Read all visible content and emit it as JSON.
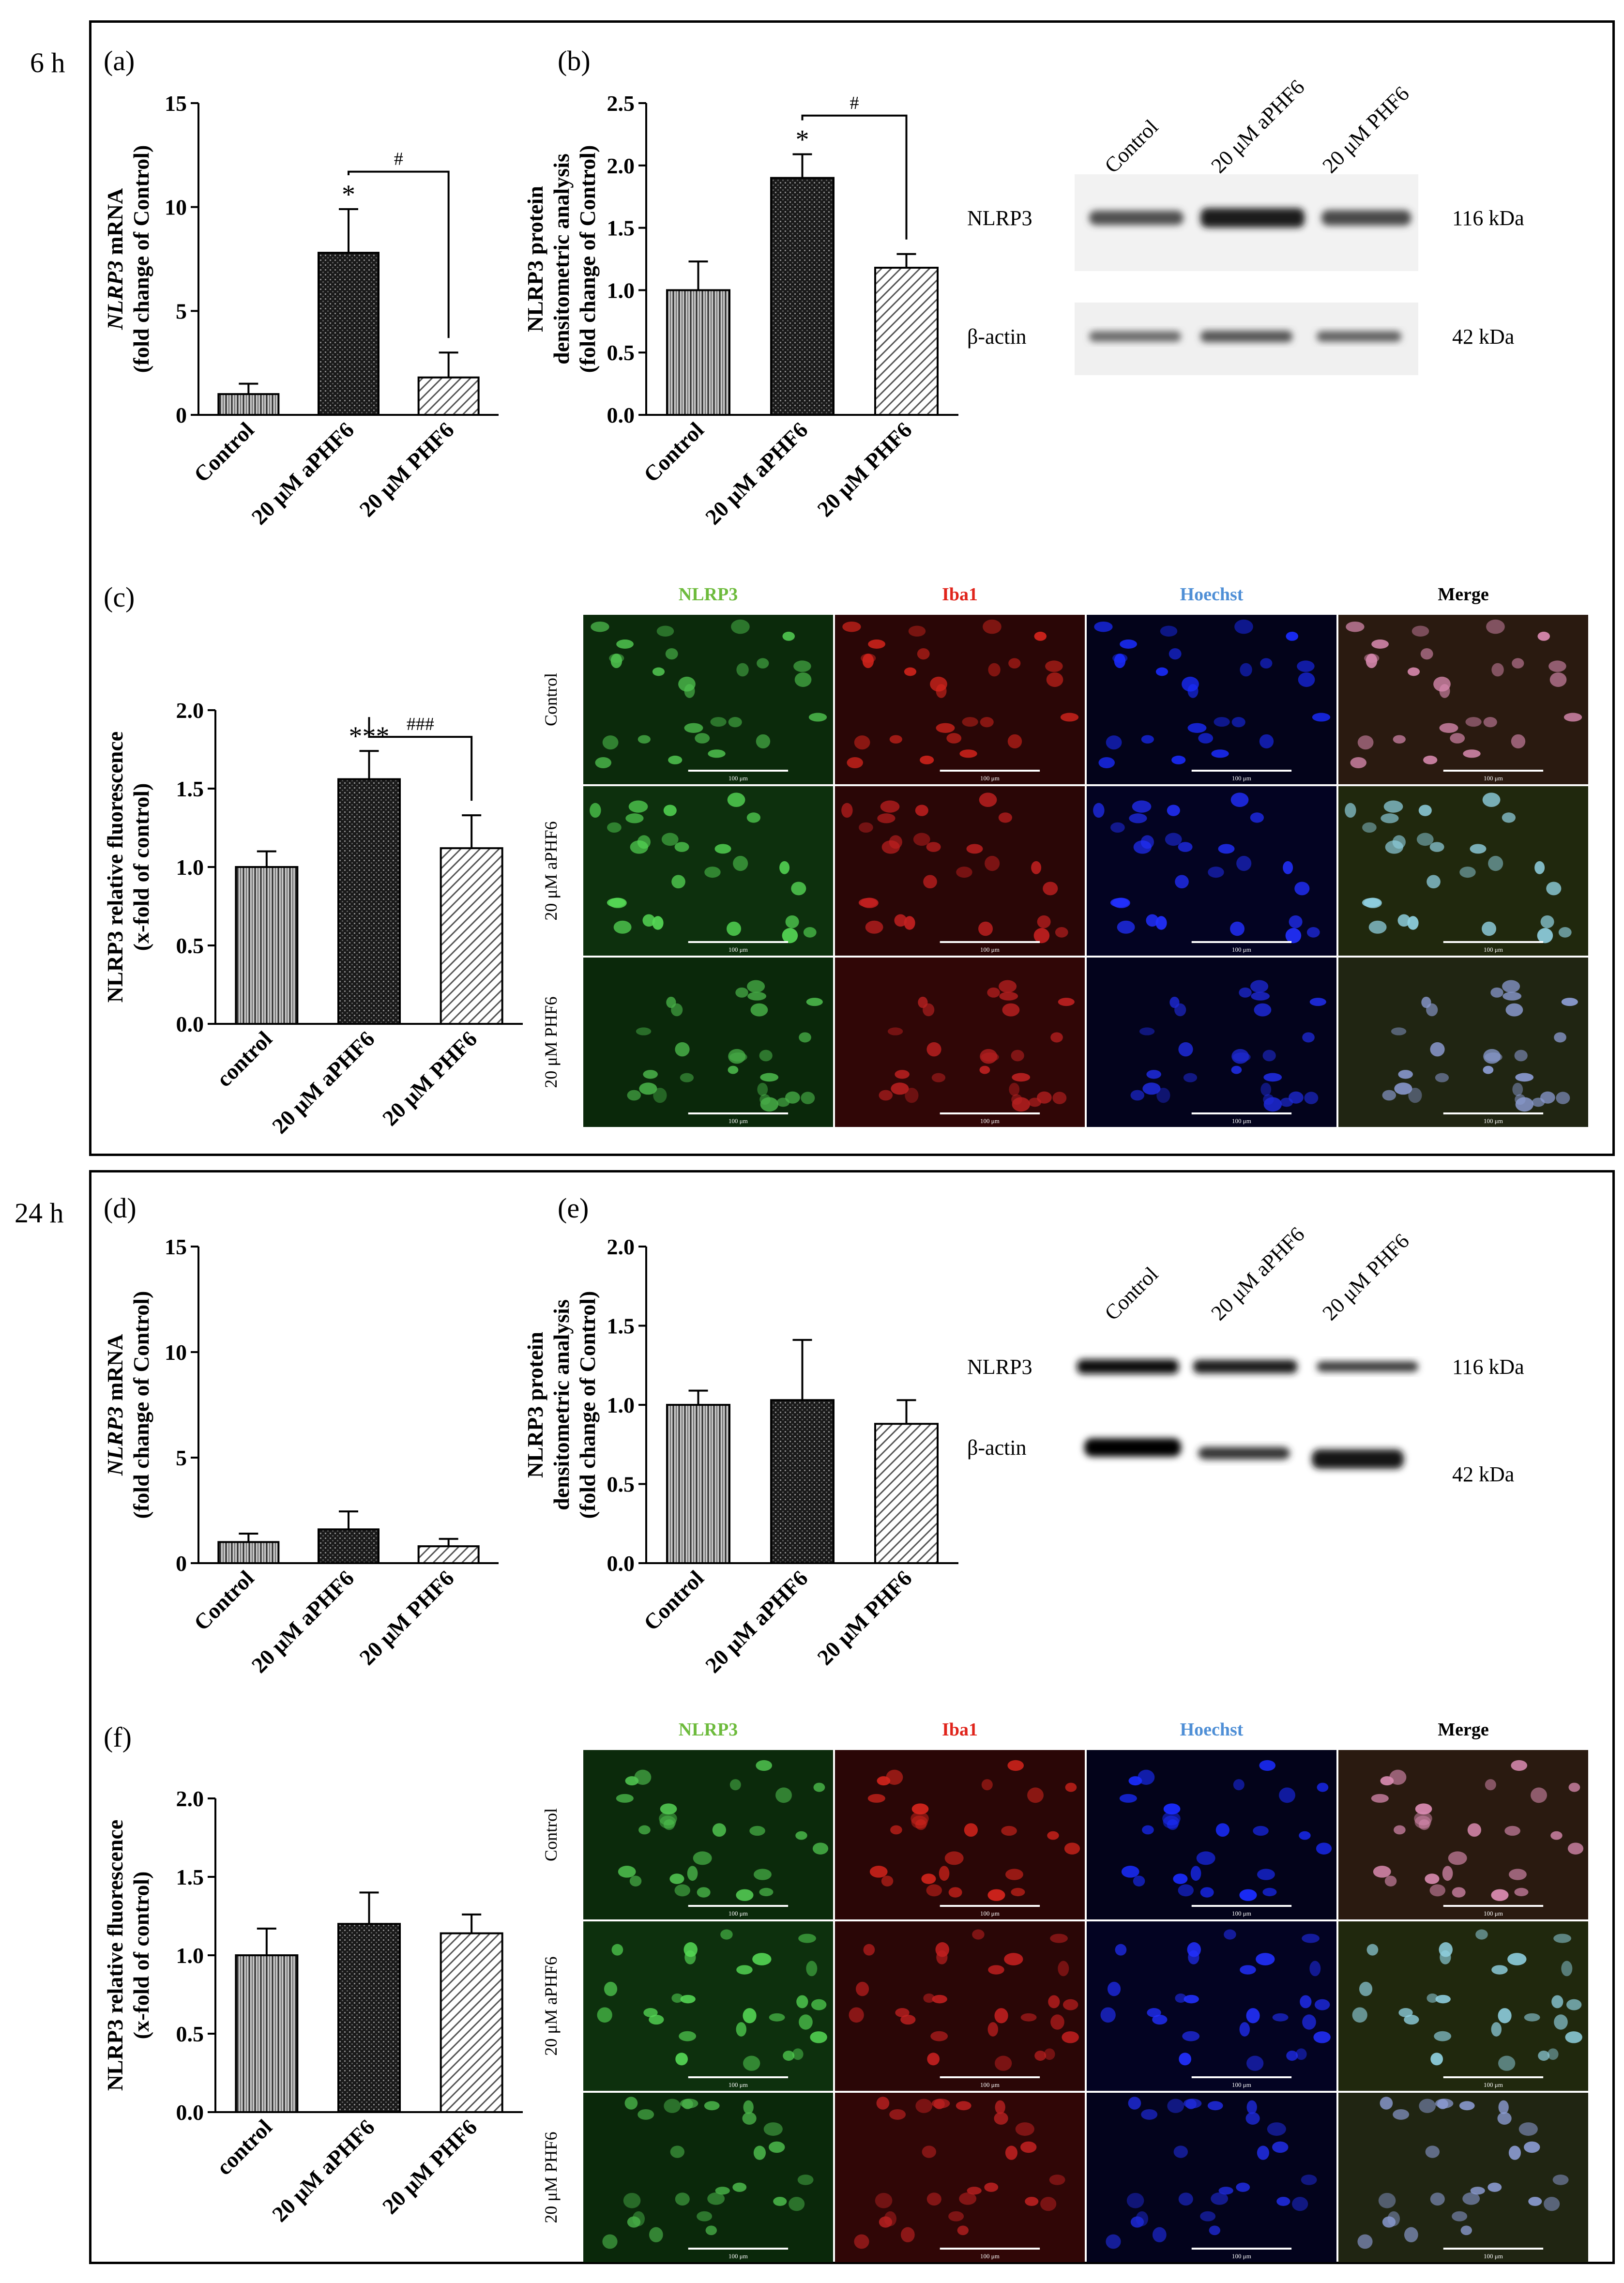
{
  "panels_top": {
    "time_label": "6 h",
    "a": {
      "label": "(a)",
      "chart_data": {
        "type": "bar",
        "ylabel_italic": "NLRP3",
        "ylabel_rest": " mRNA",
        "ylabel2": "(fold change of Control)",
        "ylim": [
          0,
          15
        ],
        "yticks": [
          "0",
          "5",
          "10",
          "15"
        ],
        "ytick_values": [
          0,
          5,
          10,
          15
        ],
        "categories": [
          "Control",
          "20 μM aPHF6",
          "20 μM PHF6"
        ],
        "values": [
          1.0,
          7.8,
          1.8
        ],
        "errors": [
          0.5,
          2.1,
          1.2
        ],
        "stars": [
          "",
          "*",
          ""
        ],
        "bracket": {
          "from": 1,
          "to": 2,
          "label": "#",
          "level": 11.7
        },
        "patterns": [
          "vlines",
          "dots",
          "diag"
        ]
      }
    },
    "b": {
      "label": "(b)",
      "chart_data": {
        "type": "bar",
        "ylabel": "NLRP3 protein",
        "ylabel2": "densitometric analysis",
        "ylabel3": "(fold change of Control)",
        "ylim": [
          0,
          2.5
        ],
        "yticks": [
          "0.0",
          "0.5",
          "1.0",
          "1.5",
          "2.0",
          "2.5"
        ],
        "ytick_values": [
          0,
          0.5,
          1.0,
          1.5,
          2.0,
          2.5
        ],
        "categories": [
          "Control",
          "20 μM aPHF6",
          "20 μM PHF6"
        ],
        "values": [
          1.0,
          1.9,
          1.18
        ],
        "errors": [
          0.23,
          0.19,
          0.11
        ],
        "stars": [
          "",
          "*",
          ""
        ],
        "bracket": {
          "from": 1,
          "to": 2,
          "label": "#",
          "level": 2.4
        },
        "patterns": [
          "vlines",
          "dots",
          "diag"
        ]
      },
      "blot": {
        "lanes": [
          "Control",
          "20 μM aPHF6",
          "20 μM PHF6"
        ],
        "rows": [
          {
            "name": "NLRP3",
            "size": "116 kDa"
          },
          {
            "name": "β-actin",
            "size": "42 kDa"
          }
        ]
      }
    },
    "c": {
      "label": "(c)",
      "chart_data": {
        "type": "bar",
        "ylabel": "NLRP3 relative fluorescence",
        "ylabel2": "(x-fold of control)",
        "ylim": [
          0,
          2.0
        ],
        "yticks": [
          "0.0",
          "0.5",
          "1.0",
          "1.5",
          "2.0"
        ],
        "ytick_values": [
          0,
          0.5,
          1.0,
          1.5,
          2.0
        ],
        "categories": [
          "control",
          "20 μM aPHF6",
          "20 μM PHF6"
        ],
        "values": [
          1.0,
          1.56,
          1.12
        ],
        "errors": [
          0.1,
          0.18,
          0.21
        ],
        "stars": [
          "",
          "***",
          ""
        ],
        "bracket": {
          "from": 1,
          "to": 2,
          "label": "###",
          "level": 1.83
        },
        "patterns": [
          "vlines",
          "dots",
          "diag"
        ]
      },
      "micro": {
        "channels": [
          "NLRP3",
          "Iba1",
          "Hoechst",
          "Merge"
        ],
        "channel_colors": [
          "#6dbb3c",
          "#e0241b",
          "#4f8fd6",
          "#000000"
        ],
        "rows": [
          "Control",
          "20 μM aPHF6",
          "20 μM PHF6"
        ],
        "scale": "100 μm"
      }
    }
  },
  "panels_bottom": {
    "time_label": "24 h",
    "d": {
      "label": "(d)",
      "chart_data": {
        "type": "bar",
        "ylabel_italic": "NLRP3",
        "ylabel_rest": " mRNA",
        "ylabel2": "(fold change of Control)",
        "ylim": [
          0,
          15
        ],
        "yticks": [
          "0",
          "5",
          "10",
          "15"
        ],
        "ytick_values": [
          0,
          5,
          10,
          15
        ],
        "categories": [
          "Control",
          "20 μM aPHF6",
          "20 μM PHF6"
        ],
        "values": [
          1.0,
          1.6,
          0.8
        ],
        "errors": [
          0.4,
          0.85,
          0.35
        ],
        "stars": [
          "",
          "",
          ""
        ],
        "patterns": [
          "vlines",
          "dots",
          "diag"
        ]
      }
    },
    "e": {
      "label": "(e)",
      "chart_data": {
        "type": "bar",
        "ylabel": "NLRP3 protein",
        "ylabel2": "densitometric analysis",
        "ylabel3": "(fold change of Control)",
        "ylim": [
          0,
          2.0
        ],
        "yticks": [
          "0.0",
          "0.5",
          "1.0",
          "1.5",
          "2.0"
        ],
        "ytick_values": [
          0,
          0.5,
          1.0,
          1.5,
          2.0
        ],
        "categories": [
          "Control",
          "20 μM aPHF6",
          "20 μM PHF6"
        ],
        "values": [
          1.0,
          1.03,
          0.88
        ],
        "errors": [
          0.09,
          0.38,
          0.15
        ],
        "stars": [
          "",
          "",
          ""
        ],
        "patterns": [
          "vlines",
          "dots",
          "diag"
        ]
      },
      "blot": {
        "lanes": [
          "Control",
          "20 μM aPHF6",
          "20 μM PHF6"
        ],
        "rows": [
          {
            "name": "NLRP3",
            "size": "116 kDa"
          },
          {
            "name": "β-actin",
            "size": "42 kDa"
          }
        ]
      }
    },
    "f": {
      "label": "(f)",
      "chart_data": {
        "type": "bar",
        "ylabel": "NLRP3 relative fluorescence",
        "ylabel2": "(x-fold of control)",
        "ylim": [
          0,
          2.0
        ],
        "yticks": [
          "0.0",
          "0.5",
          "1.0",
          "1.5",
          "2.0"
        ],
        "ytick_values": [
          0,
          0.5,
          1.0,
          1.5,
          2.0
        ],
        "categories": [
          "control",
          "20 μM aPHF6",
          "20 μM PHF6"
        ],
        "values": [
          1.0,
          1.2,
          1.14
        ],
        "errors": [
          0.17,
          0.2,
          0.12
        ],
        "stars": [
          "",
          "",
          ""
        ],
        "patterns": [
          "vlines",
          "dots",
          "diag"
        ]
      },
      "micro": {
        "channels": [
          "NLRP3",
          "Iba1",
          "Hoechst",
          "Merge"
        ],
        "channel_colors": [
          "#6dbb3c",
          "#e0241b",
          "#4f8fd6",
          "#000000"
        ],
        "rows": [
          "Control",
          "20 μM aPHF6",
          "20 μM PHF6"
        ],
        "scale": "100 μm"
      }
    }
  }
}
